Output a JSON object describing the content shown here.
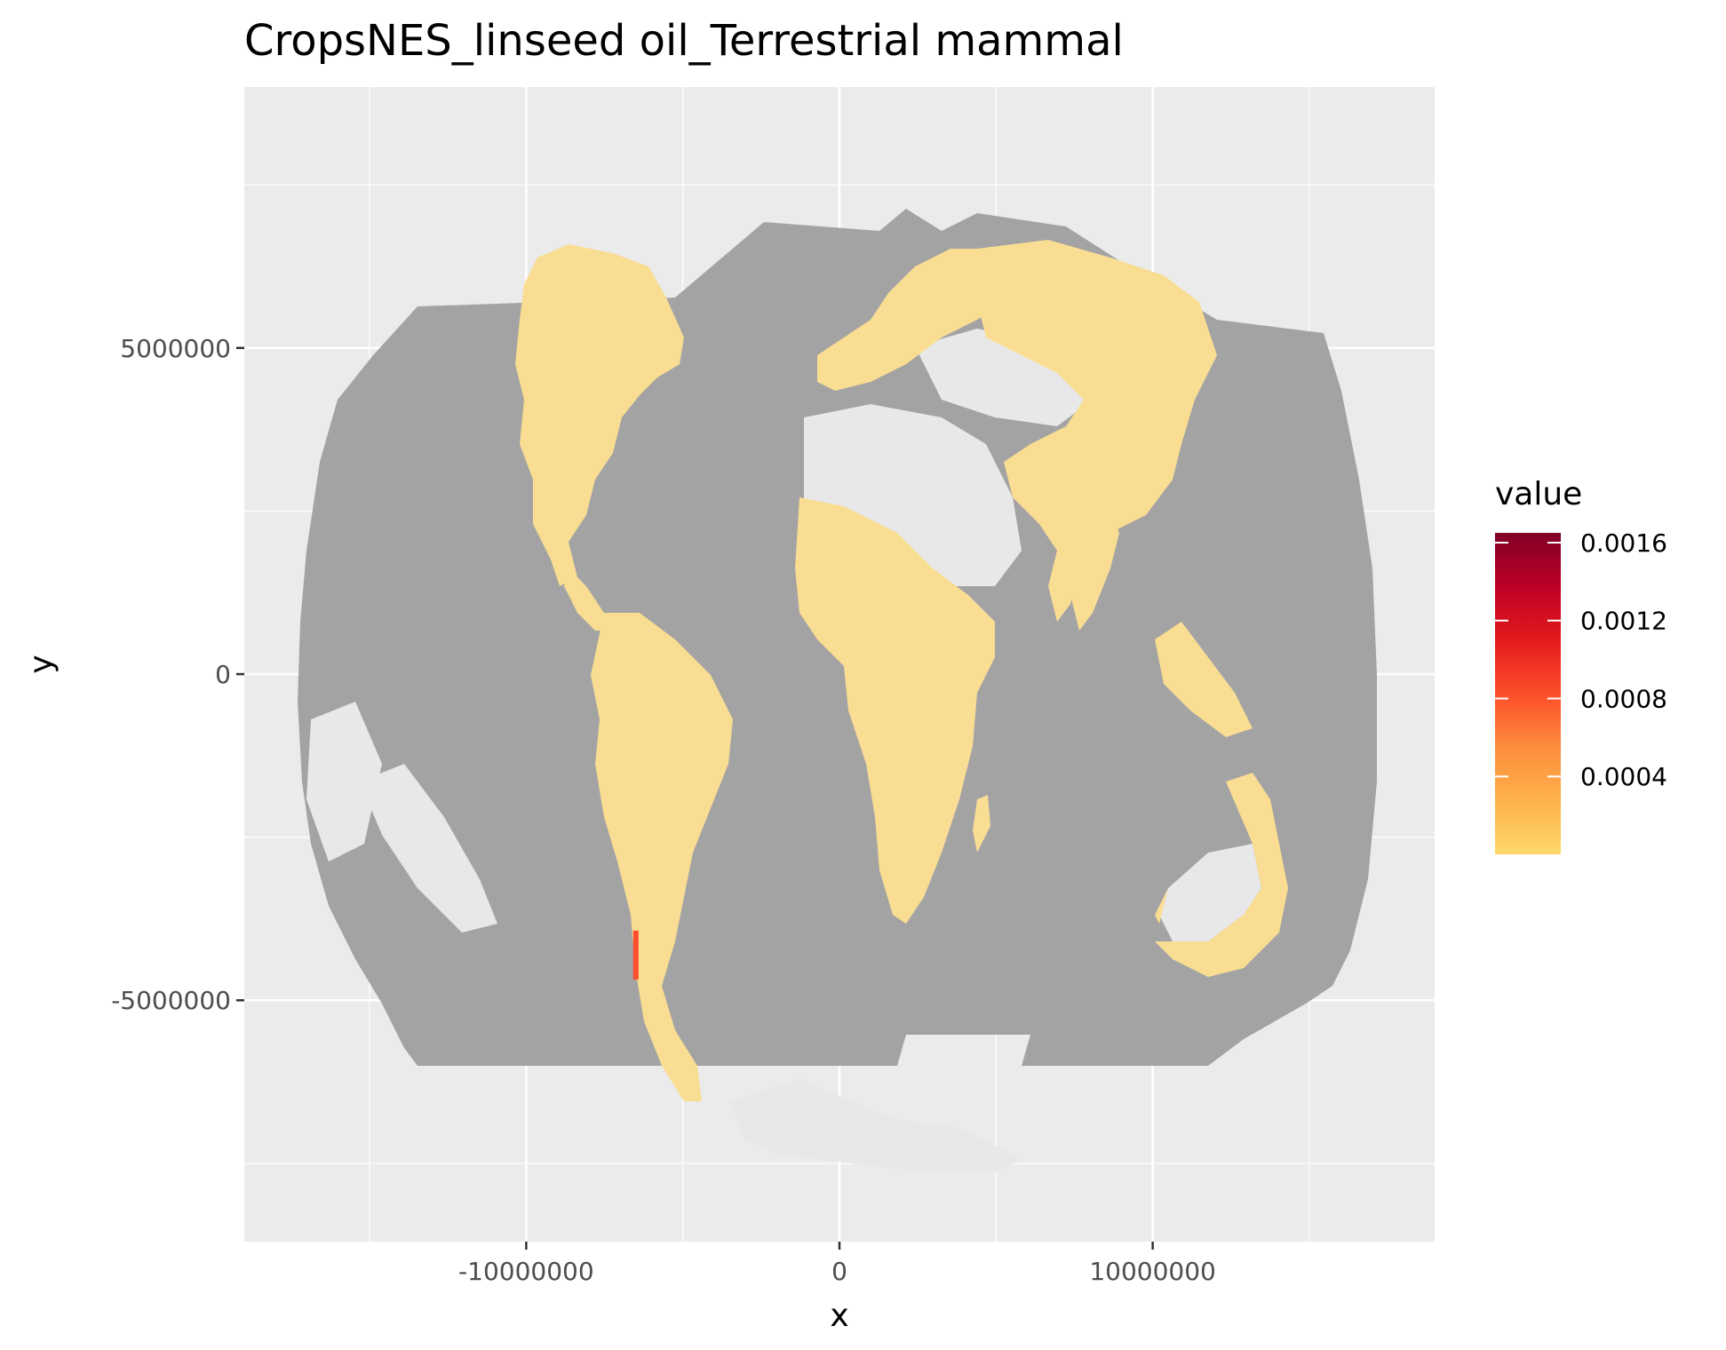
{
  "title": "CropsNES_linseed oil_Terrestrial mammal",
  "colors": {
    "panel": "#ebebeb",
    "grid_major": "#ffffff",
    "ocean_mask": "#a3a3a3",
    "land_nodata": "#e8e8e8",
    "low_value": "#f9dd93"
  },
  "chart_data": {
    "type": "heatmap",
    "xlabel": "x",
    "ylabel": "y",
    "xlim": [
      -19000000,
      19000000
    ],
    "ylim": [
      -8700000,
      9000000
    ],
    "x_ticks": [
      {
        "value": -10000000,
        "label": "-10000000"
      },
      {
        "value": 0,
        "label": "0"
      },
      {
        "value": 10000000,
        "label": "10000000"
      }
    ],
    "y_ticks": [
      {
        "value": 5000000,
        "label": "5000000"
      },
      {
        "value": 0,
        "label": "0"
      },
      {
        "value": -5000000,
        "label": "-5000000"
      }
    ],
    "x_minor": [
      -15000000,
      -5000000,
      5000000,
      15000000
    ],
    "y_minor": [
      7500000,
      2500000,
      -2500000,
      -7500000
    ],
    "grid": true,
    "legend": {
      "title": "value",
      "placement": "right",
      "range": [
        0,
        0.00165
      ],
      "ticks": [
        {
          "value": 0.0004,
          "label": "0.0004"
        },
        {
          "value": 0.0008,
          "label": "0.0008"
        },
        {
          "value": 0.0012,
          "label": "0.0012"
        },
        {
          "value": 0.0016,
          "label": "0.0016"
        }
      ],
      "gradient": [
        "#ffd96b",
        "#feb24c",
        "#fd8d3c",
        "#fc4e2a",
        "#e31a1c",
        "#bd0026",
        "#800026"
      ]
    },
    "hotspot": {
      "x": -6500000,
      "y": -4300000,
      "value": 0.0009,
      "note": ""
    }
  }
}
